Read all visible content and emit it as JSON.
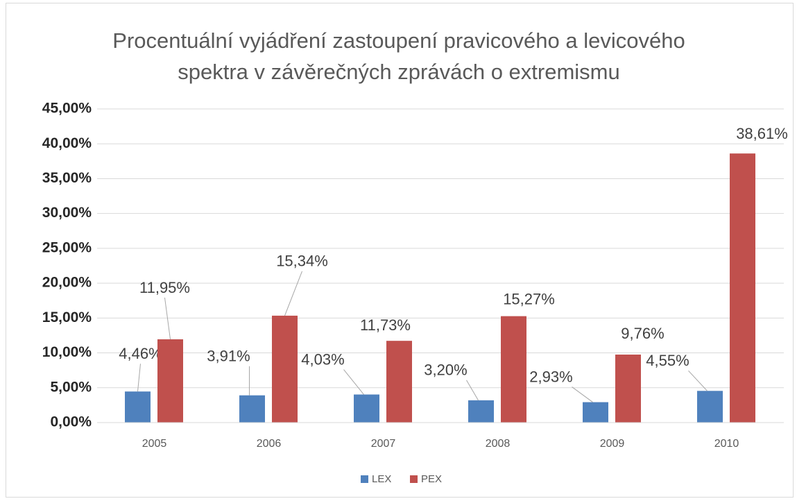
{
  "chart_data": {
    "type": "bar",
    "title": "Procentuální vyjádření zastoupení pravicového a levicového spektra v závěrečných zprávách o extremismu",
    "categories": [
      "2005",
      "2006",
      "2007",
      "2008",
      "2009",
      "2010"
    ],
    "series": [
      {
        "name": "LEX",
        "color": "#4f81bd",
        "values": [
          4.46,
          3.91,
          4.03,
          3.2,
          2.93,
          4.55
        ],
        "value_labels": [
          "4,46%",
          "3,91%",
          "4,03%",
          "3,20%",
          "2,93%",
          "4,55%"
        ]
      },
      {
        "name": "PEX",
        "color": "#c0504d",
        "values": [
          11.95,
          15.34,
          11.73,
          15.27,
          9.76,
          38.61
        ],
        "value_labels": [
          "11,95%",
          "15,34%",
          "11,73%",
          "15,27%",
          "9,76%",
          "38,61%"
        ]
      }
    ],
    "ylim": [
      0,
      45
    ],
    "yticks": [
      {
        "value": 0,
        "label": "0,00%"
      },
      {
        "value": 5,
        "label": "5,00%"
      },
      {
        "value": 10,
        "label": "10,00%"
      },
      {
        "value": 15,
        "label": "15,00%"
      },
      {
        "value": 20,
        "label": "20,00%"
      },
      {
        "value": 25,
        "label": "25,00%"
      },
      {
        "value": 30,
        "label": "30,00%"
      },
      {
        "value": 35,
        "label": "35,00%"
      },
      {
        "value": 40,
        "label": "40,00%"
      },
      {
        "value": 45,
        "label": "45,00%"
      }
    ],
    "grid": true,
    "legend": "bottom"
  }
}
